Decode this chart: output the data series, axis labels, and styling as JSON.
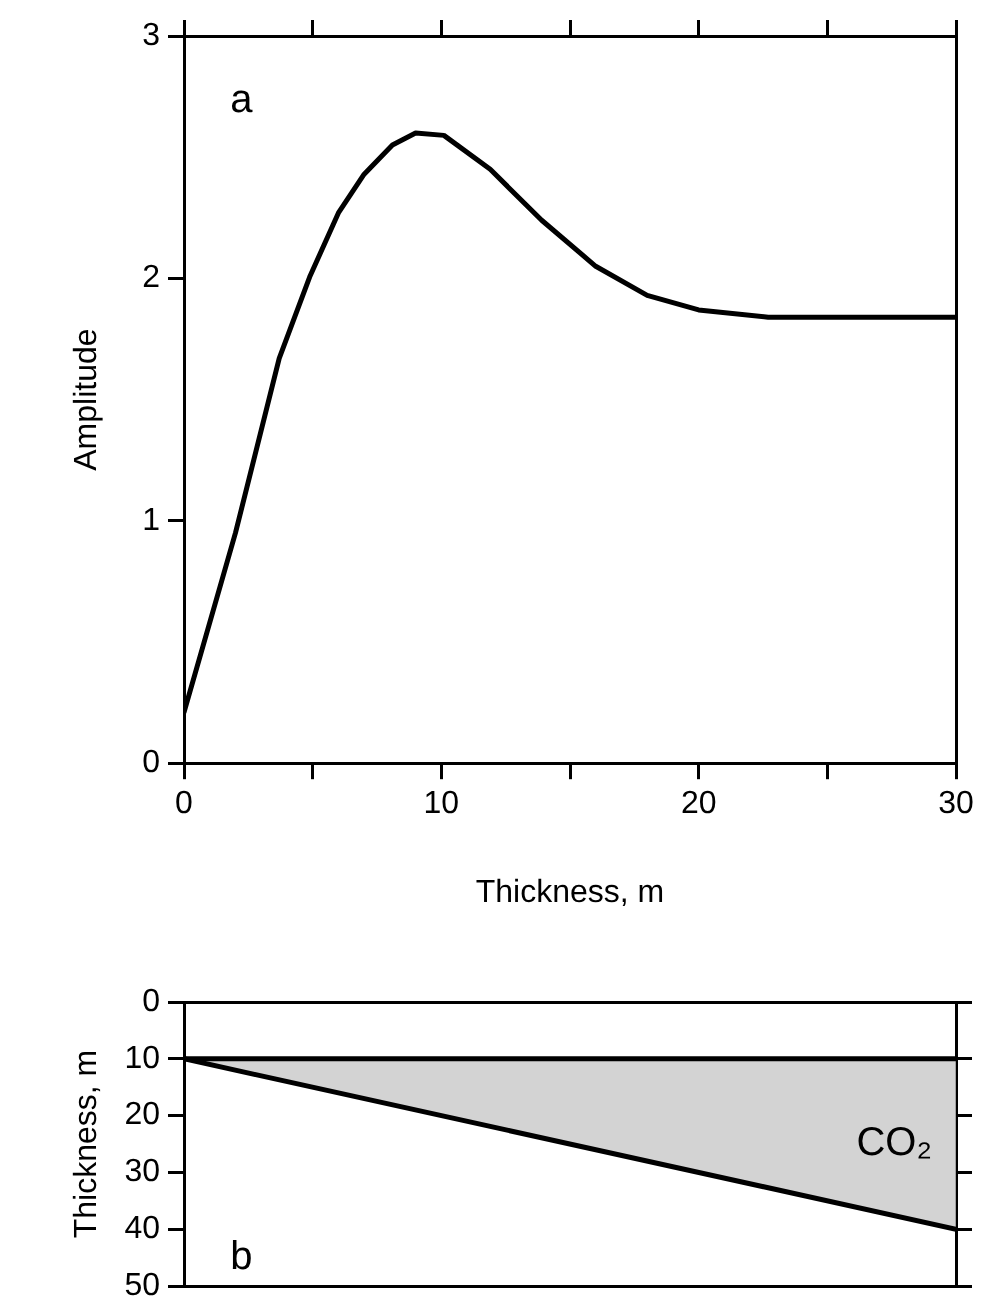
{
  "chart_data": [
    {
      "type": "line",
      "xlabel": "Thickness, m",
      "ylabel": "Amplitude",
      "annotations": [
        "a"
      ],
      "xlim": [
        0,
        30
      ],
      "xticks": [
        0,
        {
          "value": 5,
          "label": null
        },
        10,
        {
          "value": 15,
          "label": null
        },
        20,
        {
          "value": 25,
          "label": null
        },
        30
      ],
      "ylim": [
        0,
        3
      ],
      "yticks": [
        0,
        1,
        2,
        3
      ],
      "grid": false,
      "legend": false,
      "marker": "none",
      "line_style": "solid",
      "series": [
        {
          "color": "#000000",
          "x": [
            0,
            2,
            3.7,
            4.9,
            6,
            7,
            8.1,
            9,
            10.1,
            11.9,
            13.9,
            16,
            18,
            20,
            22.7,
            30
          ],
          "values": [
            0.21,
            0.95,
            1.67,
            2.01,
            2.27,
            2.43,
            2.55,
            2.6,
            2.59,
            2.45,
            2.24,
            2.05,
            1.93,
            1.87,
            1.84,
            1.84
          ]
        }
      ]
    },
    {
      "type": "line",
      "ylabel": "Thickness, m",
      "annotations": [
        "b",
        "CO₂"
      ],
      "xlim": [
        0,
        30
      ],
      "ylim": [
        50,
        0
      ],
      "yticks": [
        0,
        10,
        20,
        30,
        40,
        50
      ],
      "tick_labels": "y",
      "grid": false,
      "legend": false,
      "marker": "none",
      "series": [
        {
          "color": "#000000",
          "x": [
            0,
            30
          ],
          "values": [
            10,
            10
          ]
        },
        {
          "color": "#000000",
          "x": [
            0,
            30
          ],
          "values": [
            10,
            40
          ],
          "lower": [
            10,
            10
          ],
          "upper": [
            10,
            40
          ]
        }
      ]
    }
  ]
}
